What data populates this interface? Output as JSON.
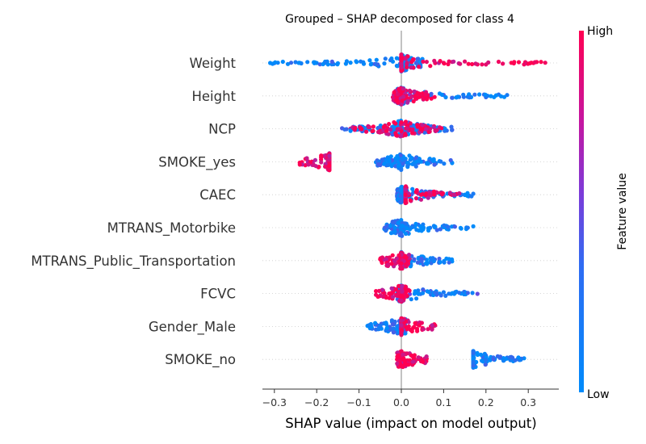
{
  "chart_data": {
    "type": "scatter",
    "title": "Grouped – SHAP decomposed for class 4",
    "xlabel": "SHAP value (impact on model output)",
    "ylabel": "",
    "xlim": [
      -0.33,
      0.34
    ],
    "x_ticks": [
      "−0.3",
      "−0.2",
      "−0.1",
      "0.0",
      "0.1",
      "0.2",
      "0.3"
    ],
    "x_tick_values": [
      -0.3,
      -0.2,
      -0.1,
      0.0,
      0.1,
      0.2,
      0.3
    ],
    "colorbar": {
      "label": "Feature value",
      "high": "High",
      "low": "Low",
      "low_color": "#008bfb",
      "high_color": "#ff0052",
      "mid_color": "#7c3bd9"
    },
    "features": [
      {
        "name": "Weight",
        "summary": {
          "low_range": [
            -0.31,
            0.05
          ],
          "high_range": [
            0.0,
            0.34
          ],
          "dense_center": 0.05
        },
        "points": [
          [
            -0.31,
            0.0
          ],
          [
            -0.3,
            0.2
          ],
          [
            -0.28,
            0.0
          ],
          [
            -0.25,
            0.1
          ],
          [
            -0.24,
            0.0
          ],
          [
            -0.2,
            0.05
          ],
          [
            -0.18,
            0.0
          ],
          [
            -0.16,
            0.1
          ],
          [
            -0.15,
            0.0
          ],
          [
            -0.12,
            0.0
          ],
          [
            -0.09,
            0.05
          ],
          [
            -0.07,
            0.0
          ],
          [
            -0.04,
            0.05
          ],
          [
            -0.02,
            0.0
          ],
          [
            0.0,
            0.0
          ],
          [
            0.02,
            0.05
          ],
          [
            0.04,
            0.85
          ],
          [
            0.06,
            0.9
          ],
          [
            0.08,
            0.95
          ],
          [
            0.1,
            0.9
          ],
          [
            0.12,
            0.85
          ],
          [
            0.15,
            0.9
          ],
          [
            0.18,
            0.95
          ],
          [
            0.2,
            0.9
          ],
          [
            0.23,
            0.95
          ],
          [
            0.26,
            1.0
          ],
          [
            0.29,
            0.95
          ],
          [
            0.32,
            1.0
          ],
          [
            0.34,
            0.95
          ]
        ]
      },
      {
        "name": "Height",
        "summary": {
          "low_range": [
            -0.01,
            0.25
          ],
          "high_range": [
            -0.02,
            0.08
          ]
        },
        "points": [
          [
            -0.02,
            0.9
          ],
          [
            0.0,
            0.85
          ],
          [
            0.01,
            0.6
          ],
          [
            0.02,
            0.5
          ],
          [
            0.03,
            0.55
          ],
          [
            0.05,
            0.45
          ],
          [
            0.07,
            0.4
          ],
          [
            0.1,
            0.35
          ],
          [
            0.13,
            0.3
          ],
          [
            0.16,
            0.25
          ],
          [
            0.2,
            0.2
          ],
          [
            0.23,
            0.15
          ],
          [
            0.25,
            0.1
          ]
        ]
      },
      {
        "name": "NCP",
        "summary": {
          "low_range": [
            -0.14,
            0.12
          ],
          "high_range": [
            -0.12,
            0.1
          ]
        },
        "points": [
          [
            -0.14,
            0.3
          ],
          [
            -0.12,
            0.8
          ],
          [
            -0.1,
            0.7
          ],
          [
            -0.08,
            0.6
          ],
          [
            -0.05,
            0.7
          ],
          [
            -0.02,
            0.8
          ],
          [
            0.0,
            0.75
          ],
          [
            0.02,
            0.8
          ],
          [
            0.04,
            0.7
          ],
          [
            0.06,
            0.65
          ],
          [
            0.08,
            0.6
          ],
          [
            0.1,
            0.55
          ],
          [
            0.12,
            0.5
          ]
        ]
      },
      {
        "name": "SMOKE_yes",
        "summary": {
          "low_range": [
            -0.06,
            0.12
          ],
          "high_range": [
            -0.24,
            -0.17
          ]
        },
        "points": [
          [
            -0.24,
            1.0
          ],
          [
            -0.22,
            1.0
          ],
          [
            -0.17,
            1.0
          ],
          [
            -0.06,
            0.0
          ],
          [
            -0.03,
            0.0
          ],
          [
            0.0,
            0.0
          ],
          [
            0.03,
            0.0
          ],
          [
            0.06,
            0.0
          ],
          [
            0.09,
            0.0
          ],
          [
            0.12,
            0.0
          ]
        ]
      },
      {
        "name": "CAEC",
        "summary": {
          "low_range": [
            -0.01,
            0.17
          ],
          "high_range": [
            0.01,
            0.15
          ]
        },
        "points": [
          [
            -0.01,
            0.1
          ],
          [
            0.01,
            0.3
          ],
          [
            0.02,
            0.1
          ],
          [
            0.04,
            0.05
          ],
          [
            0.07,
            0.1
          ],
          [
            0.1,
            0.05
          ],
          [
            0.12,
            0.9
          ],
          [
            0.14,
            0.85
          ],
          [
            0.15,
            0.05
          ],
          [
            0.17,
            0.1
          ]
        ]
      },
      {
        "name": "MTRANS_Motorbike",
        "summary": {
          "low_range": [
            -0.04,
            0.17
          ]
        },
        "points": [
          [
            -0.04,
            0.0
          ],
          [
            -0.02,
            0.0
          ],
          [
            0.0,
            0.0
          ],
          [
            0.02,
            0.0
          ],
          [
            0.05,
            0.0
          ],
          [
            0.08,
            0.0
          ],
          [
            0.11,
            0.0
          ],
          [
            0.14,
            0.0
          ],
          [
            0.17,
            0.0
          ]
        ]
      },
      {
        "name": "MTRANS_Public_Transportation",
        "summary": {
          "low_range": [
            0.0,
            0.12
          ],
          "high_range": [
            -0.05,
            0.02
          ]
        },
        "points": [
          [
            -0.05,
            1.0
          ],
          [
            -0.03,
            1.0
          ],
          [
            0.0,
            1.0
          ],
          [
            0.02,
            1.0
          ],
          [
            0.03,
            0.0
          ],
          [
            0.06,
            0.0
          ],
          [
            0.09,
            0.0
          ],
          [
            0.12,
            0.0
          ]
        ]
      },
      {
        "name": "FCVC",
        "summary": {
          "low_range": [
            -0.01,
            0.18
          ],
          "high_range": [
            -0.06,
            0.02
          ]
        },
        "points": [
          [
            -0.06,
            0.95
          ],
          [
            -0.04,
            0.9
          ],
          [
            -0.02,
            0.85
          ],
          [
            0.0,
            0.6
          ],
          [
            0.02,
            0.5
          ],
          [
            0.04,
            0.3
          ],
          [
            0.07,
            0.2
          ],
          [
            0.1,
            0.1
          ],
          [
            0.18,
            0.4
          ]
        ]
      },
      {
        "name": "Gender_Male",
        "summary": {
          "low_range": [
            -0.08,
            0.01
          ],
          "high_range": [
            0.0,
            0.08
          ]
        },
        "points": [
          [
            -0.08,
            0.0
          ],
          [
            -0.05,
            0.0
          ],
          [
            -0.03,
            0.0
          ],
          [
            -0.01,
            0.0
          ],
          [
            0.01,
            1.0
          ],
          [
            0.03,
            1.0
          ],
          [
            0.05,
            1.0
          ],
          [
            0.07,
            1.0
          ],
          [
            0.08,
            1.0
          ]
        ]
      },
      {
        "name": "SMOKE_no",
        "summary": {
          "low_range": [
            0.17,
            0.29
          ],
          "high_range": [
            -0.01,
            0.06
          ]
        },
        "points": [
          [
            -0.01,
            1.0
          ],
          [
            0.0,
            1.0
          ],
          [
            0.02,
            1.0
          ],
          [
            0.04,
            1.0
          ],
          [
            0.06,
            1.0
          ],
          [
            0.17,
            0.0
          ],
          [
            0.19,
            0.0
          ],
          [
            0.21,
            0.0
          ],
          [
            0.25,
            0.0
          ],
          [
            0.26,
            0.0
          ],
          [
            0.29,
            0.0
          ]
        ]
      }
    ]
  }
}
